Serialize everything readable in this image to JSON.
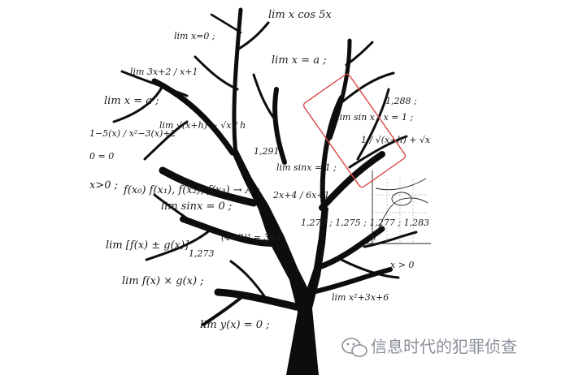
{
  "image": {
    "subject": "A black tree whose branches hold handwritten limit-calculus formulas",
    "background_color": "#ffffff",
    "highlight_color": "#d94b4b",
    "formulas": [
      {
        "id": "f1",
        "text": "lim x cos 5x"
      },
      {
        "id": "f2",
        "text": "lim x=0 ;"
      },
      {
        "id": "f3",
        "text": "lim x = a ;"
      },
      {
        "id": "f4",
        "text": "lim 3x+2 / x+1"
      },
      {
        "id": "f5",
        "text": "lim x = a ;"
      },
      {
        "id": "f6",
        "text": "lim √(x+h) − √x / h"
      },
      {
        "id": "f7",
        "text": "1−5(x) / x²−3(x)+2"
      },
      {
        "id": "f8",
        "text": "x>0 ;"
      },
      {
        "id": "f9",
        "text": "f(x₀) f(x₁), f(x₂), f(x₃) → A ;"
      },
      {
        "id": "f10",
        "text": "lim sinx = 0 ;"
      },
      {
        "id": "f11",
        "text": "lim [f(x) ± g(x)]"
      },
      {
        "id": "f12",
        "text": "lim f(x) × g(x) ;"
      },
      {
        "id": "f13",
        "text": "lim y(x) = 0 ;"
      },
      {
        "id": "f14",
        "text": "1,273"
      },
      {
        "id": "f15",
        "text": "1,291"
      },
      {
        "id": "f16",
        "text": "1,273 ; 1,275 ; 1,277 ; 1,283"
      },
      {
        "id": "f17",
        "text": "(4+3)³ = 343"
      },
      {
        "id": "f18",
        "text": "1,288 ;"
      },
      {
        "id": "f19",
        "text": "1 / √(x+h) + √x"
      },
      {
        "id": "f20",
        "text": "x > 0"
      },
      {
        "id": "f21",
        "text": "lim sin x / x = 1 ;"
      },
      {
        "id": "f22",
        "text": "lim sinx = 1 ;"
      },
      {
        "id": "f23",
        "text": "2x+4 / 6x+1"
      },
      {
        "id": "f24",
        "text": "lim x²+3x+6"
      },
      {
        "id": "f25",
        "text": "0 = 0"
      }
    ]
  },
  "watermark": {
    "icon": "wechat-icon",
    "text": "信息时代的犯罪侦查"
  }
}
